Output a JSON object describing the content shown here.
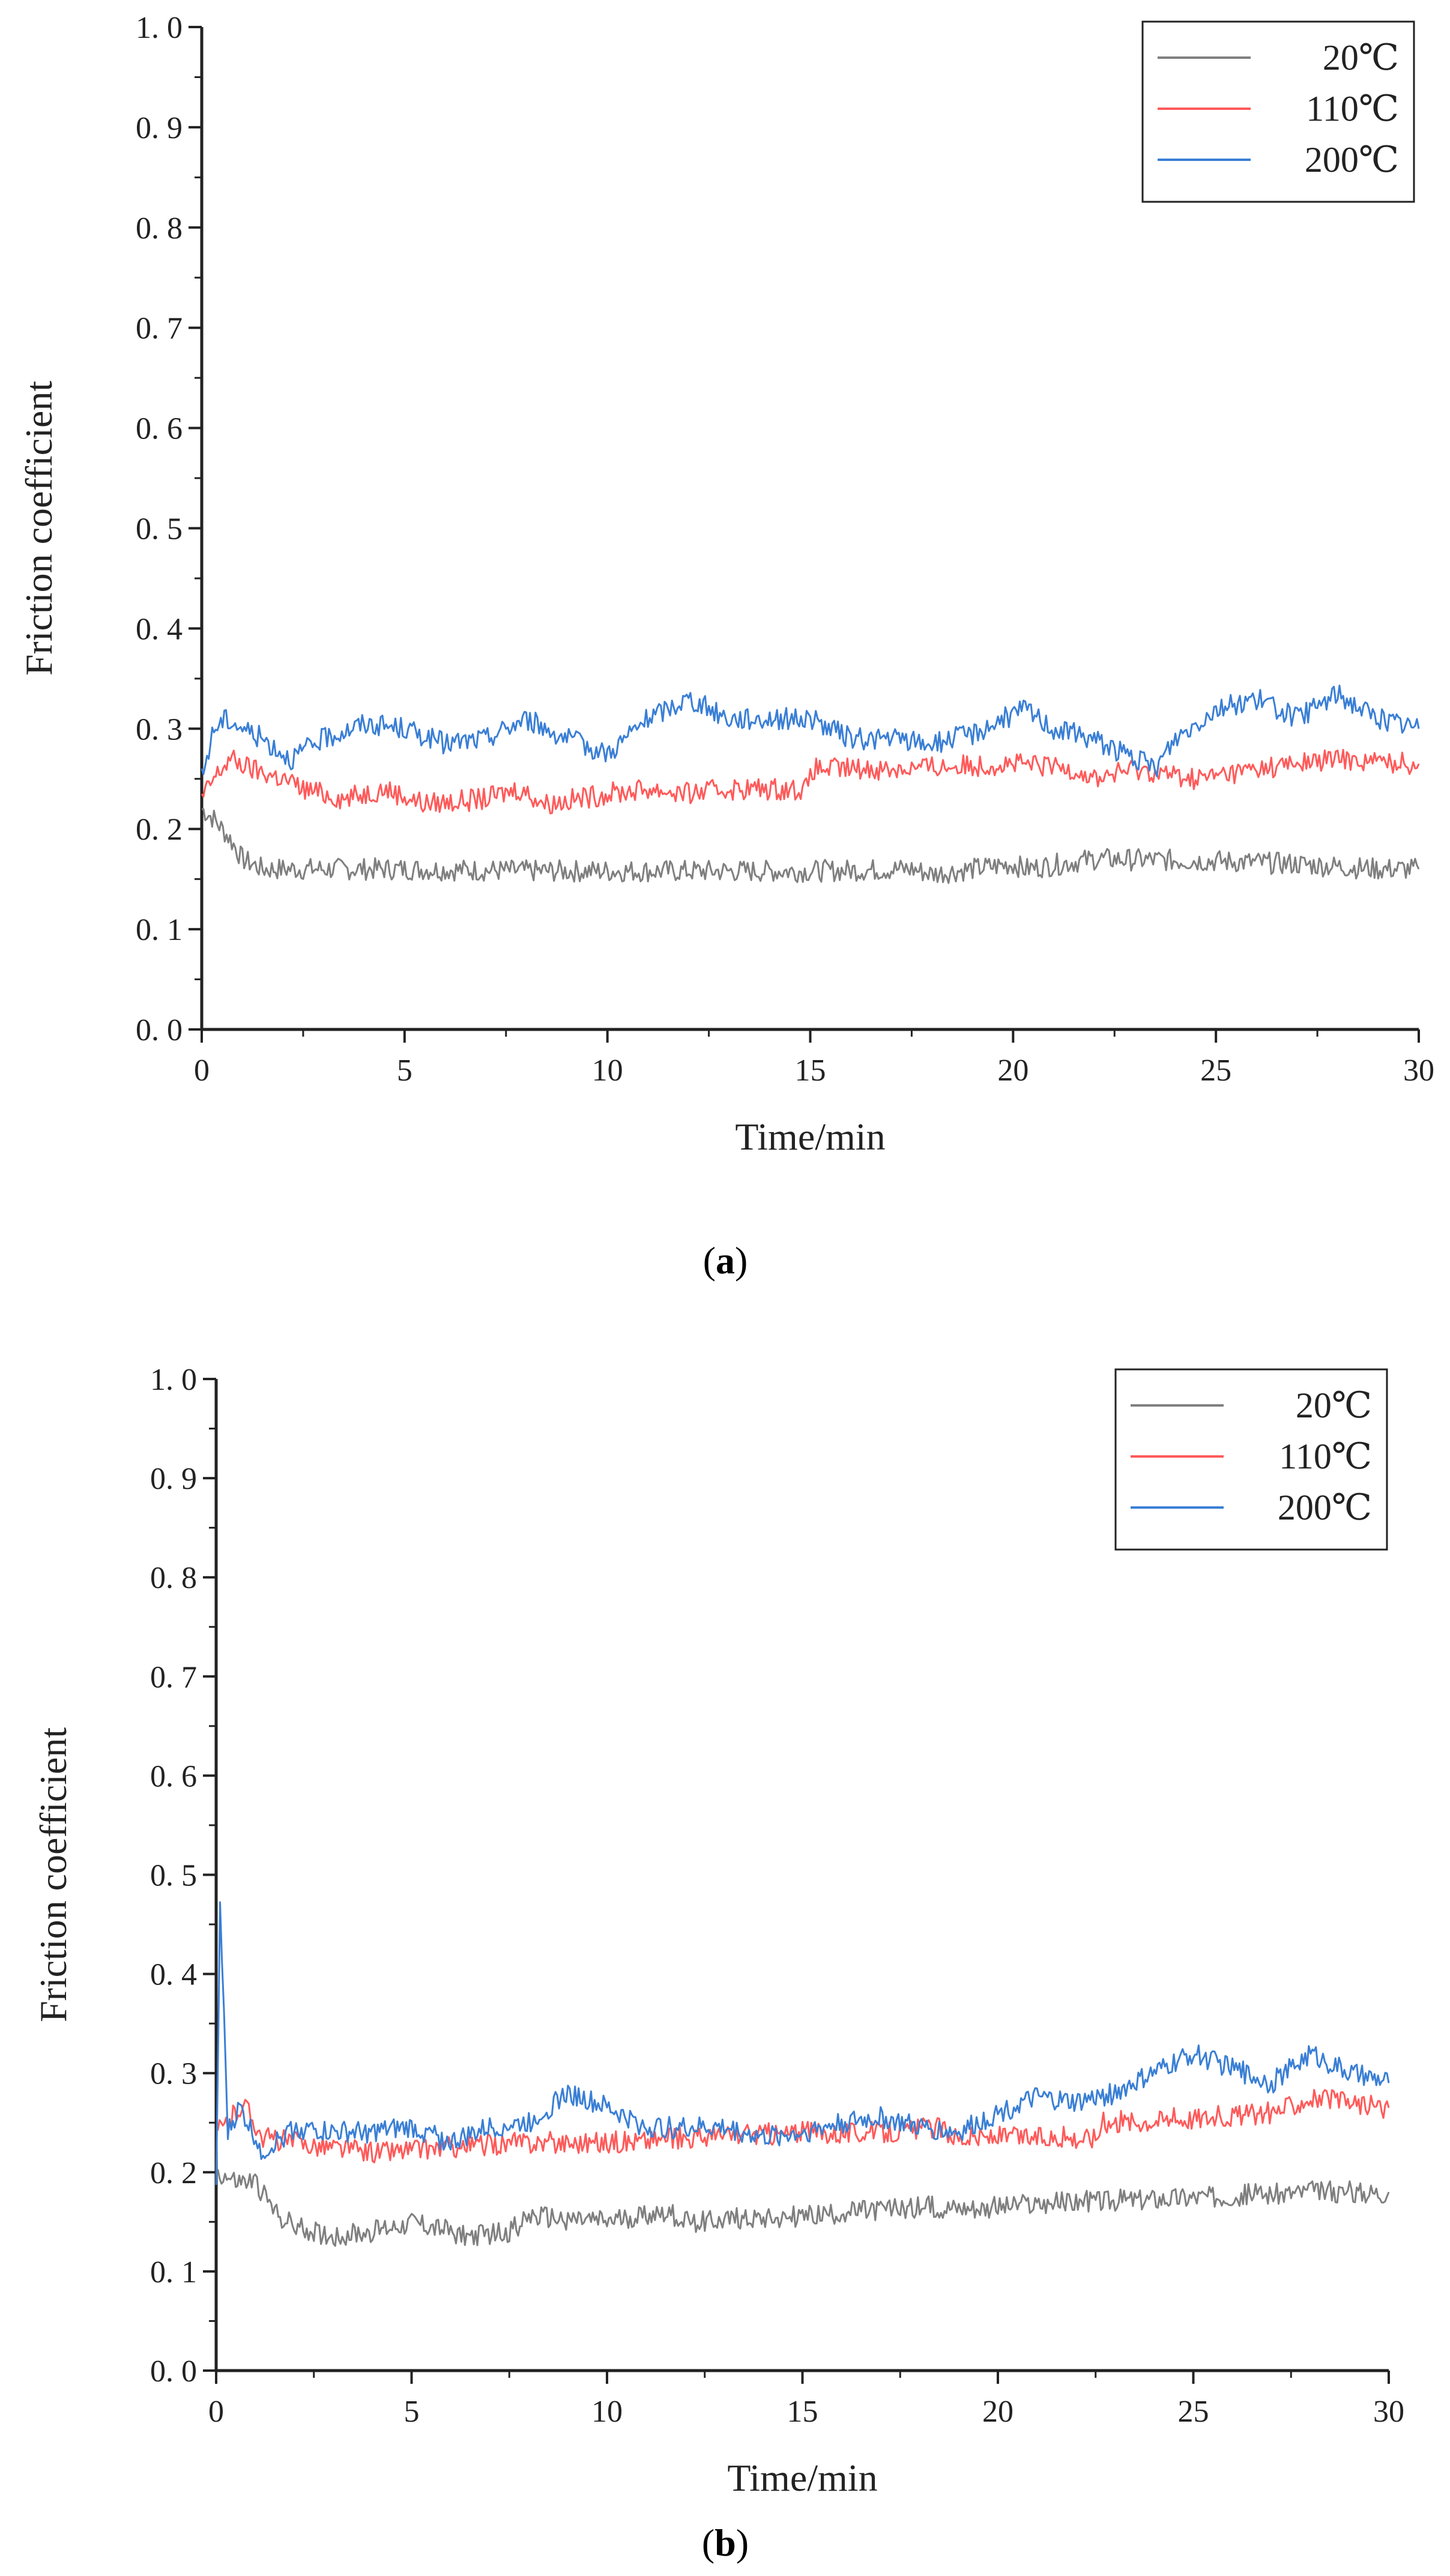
{
  "chart_data": [
    {
      "panel": "a",
      "type": "line",
      "title": "",
      "xlabel": "Time/min",
      "ylabel": "Friction coefficient",
      "xlim": [
        0,
        30
      ],
      "ylim": [
        0,
        1.0
      ],
      "xticks": [
        "0",
        "5",
        "10",
        "15",
        "20",
        "25",
        "30"
      ],
      "yticks": [
        "0. 0",
        "0. 1",
        "0. 2",
        "0. 3",
        "0. 4",
        "0. 5",
        "0. 6",
        "0. 7",
        "0. 8",
        "0. 9",
        "1. 0"
      ],
      "legend_position": "top-right",
      "series": [
        {
          "name": "20℃",
          "color": "#7f7f7f",
          "x": [
            0,
            0.3,
            0.7,
            1.0,
            1.5,
            2.0,
            3,
            5,
            8,
            10,
            12,
            15,
            17.5,
            18,
            20,
            20.3,
            22,
            25,
            27,
            29,
            30
          ],
          "y": [
            0.22,
            0.21,
            0.19,
            0.17,
            0.16,
            0.16,
            0.16,
            0.16,
            0.158,
            0.158,
            0.158,
            0.158,
            0.16,
            0.155,
            0.165,
            0.16,
            0.17,
            0.168,
            0.165,
            0.16,
            0.16
          ]
        },
        {
          "name": "110℃",
          "color": "#ff5a5a",
          "x": [
            0,
            0.3,
            0.7,
            1.2,
            2,
            2.5,
            3.5,
            4.5,
            5.5,
            7,
            7.8,
            8.5,
            10,
            11,
            12,
            13,
            14.9,
            15.1,
            17,
            20,
            21.5,
            22,
            23,
            24.5,
            26,
            28,
            30
          ],
          "y": [
            0.23,
            0.25,
            0.27,
            0.26,
            0.25,
            0.24,
            0.23,
            0.24,
            0.225,
            0.23,
            0.24,
            0.225,
            0.235,
            0.24,
            0.235,
            0.24,
            0.24,
            0.26,
            0.26,
            0.265,
            0.26,
            0.25,
            0.26,
            0.25,
            0.26,
            0.27,
            0.265
          ]
        },
        {
          "name": "200℃",
          "color": "#3a7fd5",
          "x": [
            0,
            0.3,
            0.6,
            1.5,
            2.2,
            3,
            4,
            5,
            6,
            7,
            8,
            9,
            10,
            11,
            12,
            13,
            14,
            15,
            16,
            17,
            18,
            19,
            20.3,
            21,
            22,
            23.5,
            24,
            25,
            26,
            27,
            28,
            29,
            30
          ],
          "y": [
            0.25,
            0.3,
            0.31,
            0.29,
            0.27,
            0.29,
            0.305,
            0.3,
            0.285,
            0.29,
            0.31,
            0.29,
            0.275,
            0.31,
            0.33,
            0.31,
            0.31,
            0.31,
            0.29,
            0.29,
            0.285,
            0.295,
            0.32,
            0.3,
            0.29,
            0.26,
            0.29,
            0.32,
            0.33,
            0.31,
            0.335,
            0.31,
            0.3
          ]
        }
      ]
    },
    {
      "panel": "b",
      "type": "line",
      "title": "",
      "xlabel": "Time/min",
      "ylabel": "Friction coefficient",
      "xlim": [
        0,
        30
      ],
      "ylim": [
        0,
        1.0
      ],
      "xticks": [
        "0",
        "5",
        "10",
        "15",
        "20",
        "25",
        "30"
      ],
      "yticks": [
        "0. 0",
        "0. 1",
        "0. 2",
        "0. 3",
        "0. 4",
        "0. 5",
        "0. 6",
        "0. 7",
        "0. 8",
        "0. 9",
        "1. 0"
      ],
      "legend_position": "top-right",
      "series": [
        {
          "name": "20℃",
          "color": "#7f7f7f",
          "x": [
            0,
            0.5,
            1.0,
            1.5,
            2,
            3,
            4,
            5,
            6,
            6.5,
            7.5,
            8,
            10,
            11.5,
            12,
            14,
            15,
            18,
            20,
            22,
            25,
            28,
            30
          ],
          "y": [
            0.2,
            0.19,
            0.19,
            0.16,
            0.145,
            0.135,
            0.14,
            0.15,
            0.14,
            0.135,
            0.14,
            0.155,
            0.15,
            0.16,
            0.15,
            0.155,
            0.155,
            0.165,
            0.165,
            0.17,
            0.175,
            0.18,
            0.18
          ]
        },
        {
          "name": "110℃",
          "color": "#ff5a5a",
          "x": [
            0,
            0.3,
            0.7,
            1.2,
            2,
            4,
            6,
            8,
            10,
            12,
            15,
            17,
            18.5,
            19,
            20,
            22.5,
            22.7,
            25,
            27,
            28,
            30
          ],
          "y": [
            0.24,
            0.25,
            0.27,
            0.235,
            0.23,
            0.22,
            0.225,
            0.23,
            0.23,
            0.235,
            0.24,
            0.24,
            0.245,
            0.235,
            0.235,
            0.235,
            0.25,
            0.255,
            0.26,
            0.275,
            0.265
          ]
        },
        {
          "name": "200℃",
          "color": "#3a7fd5",
          "x": [
            0,
            0.1,
            0.3,
            0.6,
            1.2,
            2,
            3,
            4,
            5,
            6,
            7,
            8,
            9,
            10,
            11,
            12,
            13,
            14,
            15,
            16,
            17,
            18,
            19,
            20,
            21,
            22,
            23,
            24,
            25,
            26,
            27,
            28,
            29,
            30
          ],
          "y": [
            0.18,
            0.47,
            0.24,
            0.265,
            0.22,
            0.245,
            0.24,
            0.24,
            0.245,
            0.23,
            0.245,
            0.25,
            0.28,
            0.265,
            0.245,
            0.245,
            0.245,
            0.235,
            0.24,
            0.25,
            0.255,
            0.245,
            0.24,
            0.26,
            0.275,
            0.27,
            0.28,
            0.3,
            0.32,
            0.305,
            0.29,
            0.32,
            0.3,
            0.29
          ]
        }
      ]
    }
  ],
  "captions": [
    {
      "open": "(",
      "letter": "a",
      "close": ")"
    },
    {
      "open": "(",
      "letter": "b",
      "close": ")"
    }
  ]
}
